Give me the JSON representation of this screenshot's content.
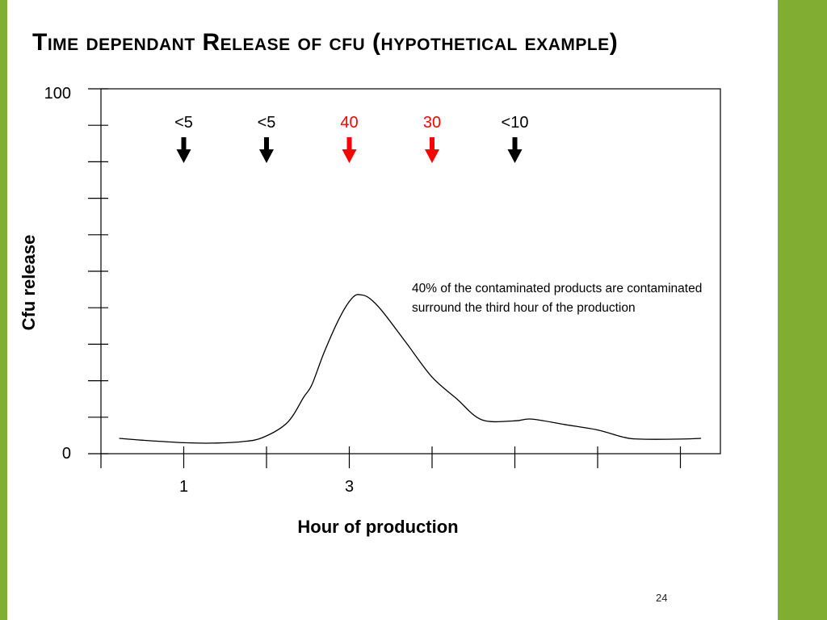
{
  "slide": {
    "title": "Time dependant Release of cfu (hypothetical example)",
    "page_number": "24",
    "accent_color": "#82ad33"
  },
  "chart_data": {
    "type": "line",
    "ylabel": "Cfu  release",
    "xlabel": "Hour of production",
    "ylim": [
      0,
      100
    ],
    "y_tick_labels": [
      "100",
      "0"
    ],
    "y_minor_tick_count": 10,
    "x_ticks": [
      {
        "hour": 1,
        "label": "1"
      },
      {
        "hour": 2,
        "label": ""
      },
      {
        "hour": 3,
        "label": "3"
      },
      {
        "hour": 4,
        "label": ""
      },
      {
        "hour": 5,
        "label": ""
      },
      {
        "hour": 6,
        "label": ""
      },
      {
        "hour": 7,
        "label": ""
      }
    ],
    "sampling_arrows": [
      {
        "hour": 1,
        "label": "<5",
        "color": "#000000"
      },
      {
        "hour": 2,
        "label": "<5",
        "color": "#000000"
      },
      {
        "hour": 3,
        "label": "40",
        "color": "#ff0000"
      },
      {
        "hour": 4,
        "label": "30",
        "color": "#ff0000"
      },
      {
        "hour": 5,
        "label": "<10",
        "color": "#000000"
      }
    ],
    "series": [
      {
        "x": [
          0.22,
          0.5,
          1.0,
          1.35,
          1.7,
          1.95,
          2.25,
          2.45,
          2.55,
          2.7,
          2.9,
          3.05,
          3.15,
          3.25,
          3.4,
          3.7,
          4.0,
          4.3,
          4.6,
          5.0,
          5.2,
          5.6,
          6.0,
          6.3,
          6.5,
          7.0,
          7.25
        ],
        "y": [
          4.2,
          3.7,
          3.0,
          2.9,
          3.3,
          4.4,
          8.5,
          15.5,
          19.0,
          28.0,
          38.0,
          43.0,
          43.5,
          42.5,
          39.0,
          30.0,
          21.0,
          15.0,
          9.3,
          9.0,
          9.5,
          8.0,
          6.5,
          4.6,
          4.0,
          4.0,
          4.2
        ]
      }
    ],
    "annotation": "40%  of the contaminated products  are contaminated  surround the third hour of the production"
  }
}
